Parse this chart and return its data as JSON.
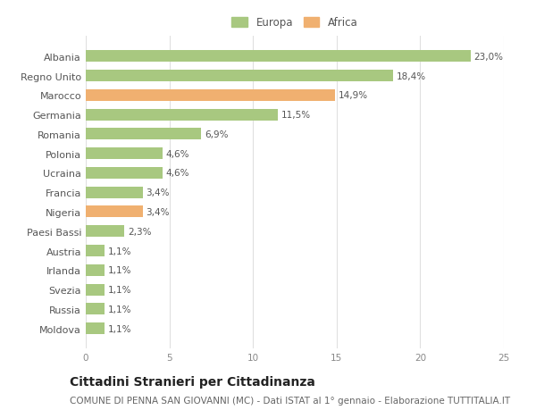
{
  "categories": [
    "Albania",
    "Regno Unito",
    "Marocco",
    "Germania",
    "Romania",
    "Polonia",
    "Ucraina",
    "Francia",
    "Nigeria",
    "Paesi Bassi",
    "Austria",
    "Irlanda",
    "Svezia",
    "Russia",
    "Moldova"
  ],
  "values": [
    23.0,
    18.4,
    14.9,
    11.5,
    6.9,
    4.6,
    4.6,
    3.4,
    3.4,
    2.3,
    1.1,
    1.1,
    1.1,
    1.1,
    1.1
  ],
  "labels": [
    "23,0%",
    "18,4%",
    "14,9%",
    "11,5%",
    "6,9%",
    "4,6%",
    "4,6%",
    "3,4%",
    "3,4%",
    "2,3%",
    "1,1%",
    "1,1%",
    "1,1%",
    "1,1%",
    "1,1%"
  ],
  "colors": [
    "#a8c880",
    "#a8c880",
    "#f0b070",
    "#a8c880",
    "#a8c880",
    "#a8c880",
    "#a8c880",
    "#a8c880",
    "#f0b070",
    "#a8c880",
    "#a8c880",
    "#a8c880",
    "#a8c880",
    "#a8c880",
    "#a8c880"
  ],
  "xlim": [
    0,
    25
  ],
  "xticks": [
    0,
    5,
    10,
    15,
    20,
    25
  ],
  "europa_color": "#a8c880",
  "africa_color": "#f0b070",
  "title": "Cittadini Stranieri per Cittadinanza",
  "subtitle": "COMUNE DI PENNA SAN GIOVANNI (MC) - Dati ISTAT al 1° gennaio - Elaborazione TUTTITALIA.IT",
  "background_color": "#ffffff",
  "grid_color": "#e0e0e0",
  "bar_height": 0.6,
  "label_fontsize": 7.5,
  "title_fontsize": 10,
  "subtitle_fontsize": 7.5,
  "ytick_fontsize": 8,
  "xtick_fontsize": 7.5,
  "legend_fontsize": 8.5
}
